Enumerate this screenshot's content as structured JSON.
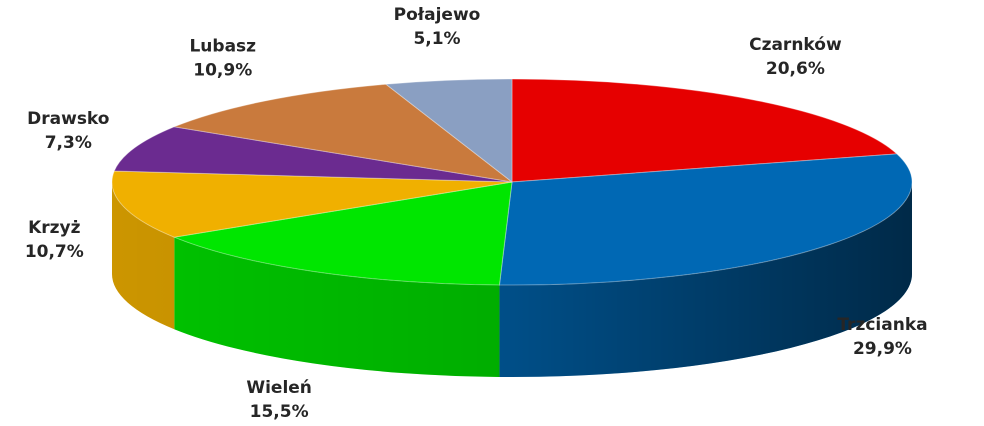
{
  "chart_data": {
    "type": "pie",
    "categories": [
      "Czarnków",
      "Trzcianka",
      "Wieleń",
      "Krzyż",
      "Drawsko",
      "Lubasz",
      "Połajewo"
    ],
    "values": [
      20.6,
      29.9,
      15.5,
      10.7,
      7.3,
      10.9,
      5.1
    ],
    "value_labels": [
      "20,6%",
      "29,9%",
      "15,5%",
      "10,7%",
      "7,3%",
      "10,9%",
      "5,1%"
    ],
    "colors": [
      "#e60000",
      "#0068b4",
      "#00e600",
      "#f0b000",
      "#6b2b90",
      "#c97a3d",
      "#8a9fc2"
    ]
  }
}
